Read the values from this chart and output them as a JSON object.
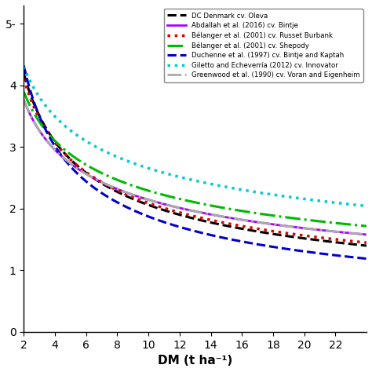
{
  "curves": [
    {
      "label": "DC Denmark cv. Oleva",
      "a": 5.7,
      "b": 0.442,
      "color": "#000000",
      "linestyle": "--",
      "linewidth": 2.2
    },
    {
      "label": "Abdallah et al. (2016) cv. Bintje",
      "a": 4.8,
      "b": 0.35,
      "color": "#aa00ff",
      "linestyle": "-",
      "linewidth": 2.0
    },
    {
      "label": "Bélanger et al. (2001) cv. Russet Burbank",
      "a": 5.5,
      "b": 0.42,
      "color": "#dd0000",
      "linestyle": ":",
      "linewidth": 2.5
    },
    {
      "label": "Bélanger et al. (2001) cv. Shepody",
      "a": 4.9,
      "b": 0.33,
      "color": "#00bb00",
      "linestyle": "-.",
      "linewidth": 2.2
    },
    {
      "label": "Duchenne et al. (1997) cv. Bintje and Kaptah",
      "a": 6.2,
      "b": 0.52,
      "color": "#0000cc",
      "linestyle": "--",
      "linewidth": 2.2
    },
    {
      "label": "Giletto and Echeverría (2012) cv. Innovator",
      "a": 5.3,
      "b": 0.3,
      "color": "#00cccc",
      "linestyle": ":",
      "linewidth": 2.5
    },
    {
      "label": "Greenwood et al. (1990) cv. Voran and Eigenheim",
      "a": 4.8,
      "b": 0.35,
      "color": "#aaaaaa",
      "linestyle": "-.",
      "linewidth": 2.0
    }
  ],
  "xmin": 2,
  "xmax": 24,
  "ymin": 0,
  "ymax": 5.3,
  "yticks": [
    0,
    1,
    2,
    3,
    4,
    5
  ],
  "xticks": [
    2,
    4,
    6,
    8,
    10,
    12,
    14,
    16,
    18,
    20,
    22
  ],
  "xlabel": "DM (t ha⁻¹)",
  "background_color": "#ffffff"
}
